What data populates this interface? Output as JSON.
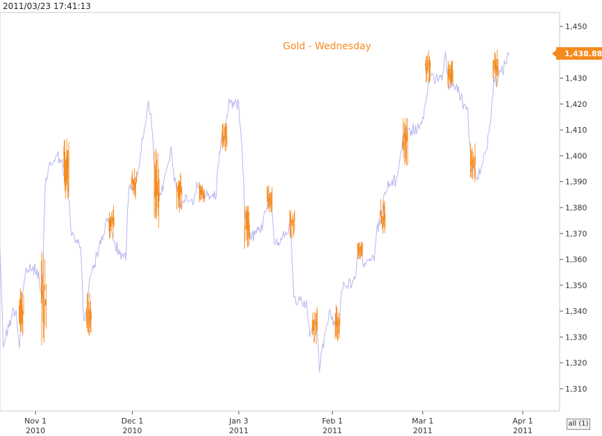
{
  "header": {
    "timestamp": "2011/03/23 17:41:13"
  },
  "controls": {
    "range_label": "all (1)"
  },
  "colors": {
    "background": "#ffffff",
    "line": "#b7b5ee",
    "highlight": "#f58a1f",
    "grid": "#d9d9d9"
  },
  "chart_data": {
    "type": "line",
    "title": "Gold - Wednesday",
    "last_value_label": "1,438.88",
    "y_axis": {
      "position": "right",
      "range": [
        1302,
        1458
      ],
      "ticks": [
        1310,
        1320,
        1330,
        1340,
        1350,
        1360,
        1370,
        1380,
        1390,
        1400,
        1410,
        1420,
        1430,
        1440,
        1450
      ],
      "tick_labels": [
        "1,310",
        "1,320",
        "1,330",
        "1,340",
        "1,350",
        "1,360",
        "1,370",
        "1,380",
        "1,390",
        "1,400",
        "1,410",
        "1,420",
        "1,430",
        "1,440",
        "1,450"
      ]
    },
    "x_axis": {
      "range": [
        "2010-10-21",
        "2011-04-12"
      ],
      "ticks": [
        {
          "date": "2010-11-01",
          "line1": "Nov 1",
          "line2": "2010"
        },
        {
          "date": "2010-12-01",
          "line1": "Dec 1",
          "line2": "2010"
        },
        {
          "date": "2011-01-03",
          "line1": "Jan 3",
          "line2": "2011"
        },
        {
          "date": "2011-02-01",
          "line1": "Feb 1",
          "line2": "2011"
        },
        {
          "date": "2011-03-01",
          "line1": "Mar 1",
          "line2": "2011"
        },
        {
          "date": "2011-04-01",
          "line1": "Apr 1",
          "line2": "2011"
        }
      ]
    },
    "grid": false,
    "legend": "none",
    "series": [
      {
        "points": [
          [
            "2010-10-21",
            1365
          ],
          [
            "2010-10-22",
            1327
          ],
          [
            "2010-10-25",
            1340
          ],
          [
            "2010-10-26",
            1340
          ],
          [
            "2010-10-27",
            1326
          ],
          [
            "2010-10-28",
            1346
          ],
          [
            "2010-10-29",
            1356
          ],
          [
            "2010-11-01",
            1356
          ],
          [
            "2010-11-02",
            1354
          ],
          [
            "2010-11-03",
            1342
          ],
          [
            "2010-11-04",
            1388
          ],
          [
            "2010-11-05",
            1396
          ],
          [
            "2010-11-08",
            1400
          ],
          [
            "2010-11-09",
            1398
          ],
          [
            "2010-11-10",
            1391
          ],
          [
            "2010-11-11",
            1390
          ],
          [
            "2010-11-12",
            1370
          ],
          [
            "2010-11-15",
            1365
          ],
          [
            "2010-11-16",
            1337
          ],
          [
            "2010-11-17",
            1339
          ],
          [
            "2010-11-18",
            1355
          ],
          [
            "2010-11-19",
            1357
          ],
          [
            "2010-11-22",
            1370
          ],
          [
            "2010-11-23",
            1375
          ],
          [
            "2010-11-24",
            1374
          ],
          [
            "2010-11-26",
            1364
          ],
          [
            "2010-11-29",
            1361
          ],
          [
            "2010-11-30",
            1391
          ],
          [
            "2010-12-01",
            1388
          ],
          [
            "2010-12-02",
            1390
          ],
          [
            "2010-12-03",
            1396
          ],
          [
            "2010-12-06",
            1420
          ],
          [
            "2010-12-07",
            1412
          ],
          [
            "2010-12-08",
            1394
          ],
          [
            "2010-12-09",
            1385
          ],
          [
            "2010-12-10",
            1386
          ],
          [
            "2010-12-13",
            1402
          ],
          [
            "2010-12-14",
            1392
          ],
          [
            "2010-12-15",
            1389
          ],
          [
            "2010-12-16",
            1379
          ],
          [
            "2010-12-17",
            1384
          ],
          [
            "2010-12-20",
            1383
          ],
          [
            "2010-12-21",
            1388
          ],
          [
            "2010-12-22",
            1387
          ],
          [
            "2010-12-23",
            1384
          ],
          [
            "2010-12-27",
            1385
          ],
          [
            "2010-12-28",
            1402
          ],
          [
            "2010-12-29",
            1407
          ],
          [
            "2010-12-30",
            1412
          ],
          [
            "2010-12-31",
            1421
          ],
          [
            "2011-01-03",
            1420
          ],
          [
            "2011-01-04",
            1404
          ],
          [
            "2011-01-05",
            1377
          ],
          [
            "2011-01-06",
            1372
          ],
          [
            "2011-01-07",
            1369
          ],
          [
            "2011-01-10",
            1372
          ],
          [
            "2011-01-11",
            1378
          ],
          [
            "2011-01-12",
            1383
          ],
          [
            "2011-01-13",
            1385
          ],
          [
            "2011-01-14",
            1367
          ],
          [
            "2011-01-17",
            1369
          ],
          [
            "2011-01-18",
            1368
          ],
          [
            "2011-01-19",
            1375
          ],
          [
            "2011-01-20",
            1346
          ],
          [
            "2011-01-21",
            1343
          ],
          [
            "2011-01-24",
            1342
          ],
          [
            "2011-01-25",
            1331
          ],
          [
            "2011-01-26",
            1336
          ],
          [
            "2011-01-27",
            1336
          ],
          [
            "2011-01-28",
            1318
          ],
          [
            "2011-01-31",
            1340
          ],
          [
            "2011-02-01",
            1337
          ],
          [
            "2011-02-02",
            1333
          ],
          [
            "2011-02-03",
            1336
          ],
          [
            "2011-02-04",
            1350
          ],
          [
            "2011-02-07",
            1350
          ],
          [
            "2011-02-08",
            1352
          ],
          [
            "2011-02-09",
            1364
          ],
          [
            "2011-02-10",
            1363
          ],
          [
            "2011-02-11",
            1359
          ],
          [
            "2011-02-14",
            1362
          ],
          [
            "2011-02-15",
            1372
          ],
          [
            "2011-02-16",
            1375
          ],
          [
            "2011-02-17",
            1383
          ],
          [
            "2011-02-18",
            1388
          ],
          [
            "2011-02-21",
            1391
          ],
          [
            "2011-02-22",
            1400
          ],
          [
            "2011-02-23",
            1407
          ],
          [
            "2011-02-24",
            1412
          ],
          [
            "2011-02-25",
            1409
          ],
          [
            "2011-02-28",
            1411
          ],
          [
            "2011-03-01",
            1412
          ],
          [
            "2011-03-02",
            1420
          ],
          [
            "2011-03-03",
            1432
          ],
          [
            "2011-03-04",
            1431
          ],
          [
            "2011-03-07",
            1430
          ],
          [
            "2011-03-08",
            1440
          ],
          [
            "2011-03-09",
            1428
          ],
          [
            "2011-03-10",
            1428
          ],
          [
            "2011-03-11",
            1428
          ],
          [
            "2011-03-14",
            1419
          ],
          [
            "2011-03-15",
            1416
          ],
          [
            "2011-03-16",
            1396
          ],
          [
            "2011-03-17",
            1395
          ],
          [
            "2011-03-18",
            1390
          ],
          [
            "2011-03-21",
            1405
          ],
          [
            "2011-03-22",
            1413
          ],
          [
            "2011-03-23",
            1430
          ],
          [
            "2011-03-24",
            1429
          ],
          [
            "2011-03-25",
            1431
          ],
          [
            "2011-03-28",
            1439
          ]
        ],
        "highlights": [
          {
            "day": "Wednesday",
            "from": "2010-10-27",
            "to": "2010-10-28",
            "min": 1330,
            "max": 1349
          },
          {
            "day": "Wednesday",
            "from": "2010-11-03",
            "to": "2010-11-04",
            "min": 1326,
            "max": 1366
          },
          {
            "day": "Wednesday",
            "from": "2010-11-10",
            "to": "2010-11-11",
            "min": 1382,
            "max": 1408
          },
          {
            "day": "Wednesday",
            "from": "2010-11-17",
            "to": "2010-11-18",
            "min": 1330,
            "max": 1348
          },
          {
            "day": "Wednesday",
            "from": "2010-11-24",
            "to": "2010-11-25",
            "min": 1368,
            "max": 1382
          },
          {
            "day": "Wednesday",
            "from": "2010-12-01",
            "to": "2010-12-02",
            "min": 1383,
            "max": 1397
          },
          {
            "day": "Wednesday",
            "from": "2010-12-08",
            "to": "2010-12-09",
            "min": 1371,
            "max": 1403
          },
          {
            "day": "Wednesday",
            "from": "2010-12-15",
            "to": "2010-12-16",
            "min": 1375,
            "max": 1397
          },
          {
            "day": "Wednesday",
            "from": "2010-12-22",
            "to": "2010-12-23",
            "min": 1382,
            "max": 1390
          },
          {
            "day": "Wednesday",
            "from": "2010-12-29",
            "to": "2010-12-30",
            "min": 1401,
            "max": 1414
          },
          {
            "day": "Wednesday",
            "from": "2011-01-05",
            "to": "2011-01-06",
            "min": 1364,
            "max": 1382
          },
          {
            "day": "Wednesday",
            "from": "2011-01-12",
            "to": "2011-01-13",
            "min": 1378,
            "max": 1389
          },
          {
            "day": "Wednesday",
            "from": "2011-01-19",
            "to": "2011-01-20",
            "min": 1368,
            "max": 1380
          },
          {
            "day": "Wednesday",
            "from": "2011-01-26",
            "to": "2011-01-27",
            "min": 1327,
            "max": 1342
          },
          {
            "day": "Wednesday",
            "from": "2011-02-02",
            "to": "2011-02-03",
            "min": 1328,
            "max": 1343
          },
          {
            "day": "Wednesday",
            "from": "2011-02-09",
            "to": "2011-02-10",
            "min": 1360,
            "max": 1367
          },
          {
            "day": "Wednesday",
            "from": "2011-02-16",
            "to": "2011-02-17",
            "min": 1369,
            "max": 1385
          },
          {
            "day": "Wednesday",
            "from": "2011-02-23",
            "to": "2011-02-24",
            "min": 1396,
            "max": 1416
          },
          {
            "day": "Wednesday",
            "from": "2011-03-02",
            "to": "2011-03-03",
            "min": 1428,
            "max": 1441
          },
          {
            "day": "Wednesday",
            "from": "2011-03-09",
            "to": "2011-03-10",
            "min": 1425,
            "max": 1437
          },
          {
            "day": "Wednesday",
            "from": "2011-03-16",
            "to": "2011-03-17",
            "min": 1389,
            "max": 1405
          },
          {
            "day": "Wednesday",
            "from": "2011-03-23",
            "to": "2011-03-24",
            "min": 1426,
            "max": 1442
          }
        ]
      }
    ]
  }
}
